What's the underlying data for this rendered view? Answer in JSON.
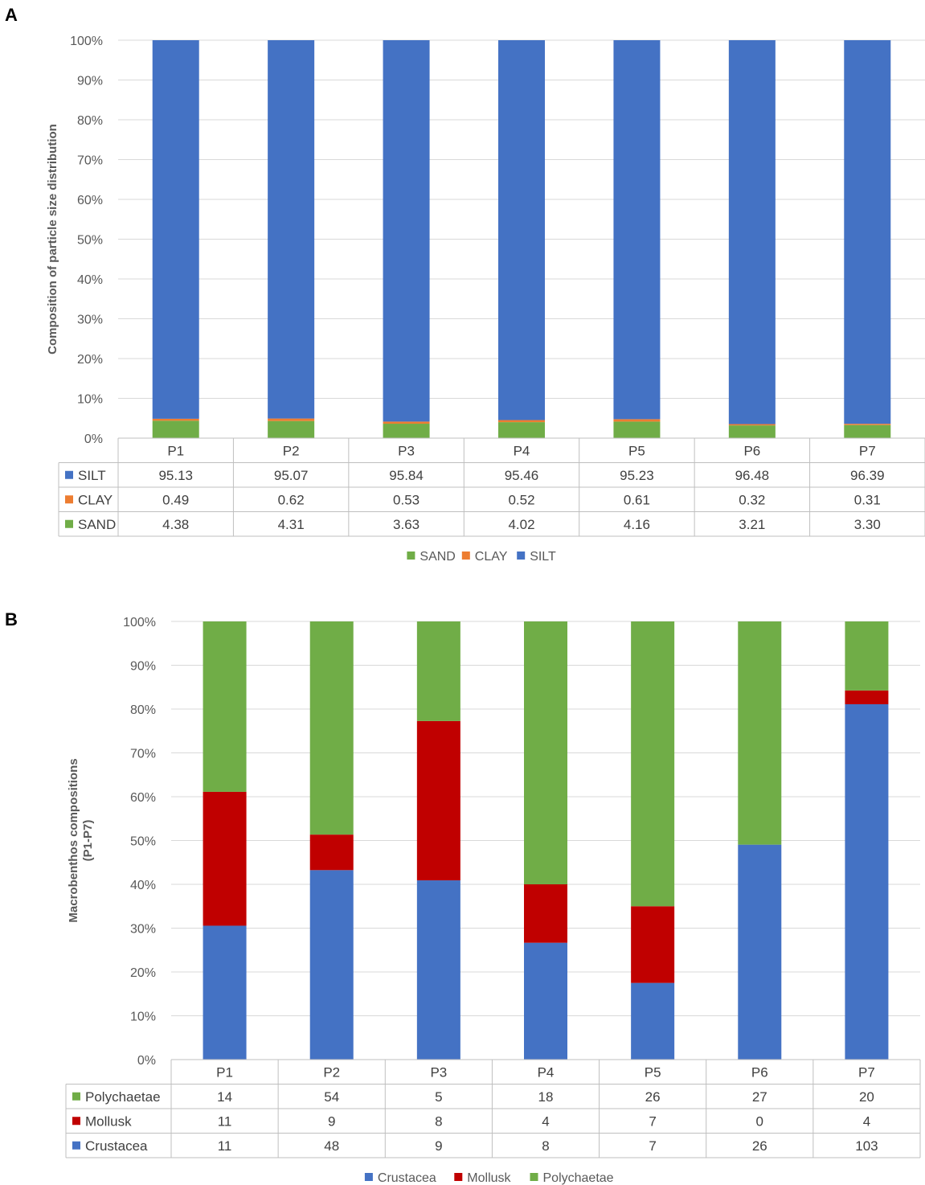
{
  "chart_data": [
    {
      "panel": "A",
      "type": "bar",
      "stacked": "percent",
      "ylabel": "Composition of particle size distribution",
      "yticks": [
        "0%",
        "10%",
        "20%",
        "30%",
        "40%",
        "50%",
        "60%",
        "70%",
        "80%",
        "90%",
        "100%"
      ],
      "ylim": [
        0,
        100
      ],
      "categories": [
        "P1",
        "P2",
        "P3",
        "P4",
        "P5",
        "P6",
        "P7"
      ],
      "series": [
        {
          "name": "SILT",
          "color": "#4472C4",
          "values": [
            95.13,
            95.07,
            95.84,
            95.46,
            95.23,
            96.48,
            96.39
          ],
          "labels": [
            "95.13",
            "95.07",
            "95.84",
            "95.46",
            "95.23",
            "96.48",
            "96.39"
          ]
        },
        {
          "name": "CLAY",
          "color": "#ED7D31",
          "values": [
            0.49,
            0.62,
            0.53,
            0.52,
            0.61,
            0.32,
            0.31
          ],
          "labels": [
            "0.49",
            "0.62",
            "0.53",
            "0.52",
            "0.61",
            "0.32",
            "0.31"
          ]
        },
        {
          "name": "SAND",
          "color": "#70AD47",
          "values": [
            4.38,
            4.31,
            3.63,
            4.02,
            4.16,
            3.21,
            3.3
          ],
          "labels": [
            "4.38",
            "4.31",
            "3.63",
            "4.02",
            "4.16",
            "3.21",
            "3.30"
          ]
        }
      ],
      "stack_order": [
        "SAND",
        "CLAY",
        "SILT"
      ],
      "legend": [
        "SAND",
        "CLAY",
        "SILT"
      ]
    },
    {
      "panel": "B",
      "type": "bar",
      "stacked": "percent",
      "ylabel": "Macrobenthos compositions (P1-P7)",
      "ylabel_lines": [
        "Macrobenthos compositions",
        "(P1-P7)"
      ],
      "yticks": [
        "0%",
        "10%",
        "20%",
        "30%",
        "40%",
        "50%",
        "60%",
        "70%",
        "80%",
        "90%",
        "100%"
      ],
      "ylim": [
        0,
        100
      ],
      "categories": [
        "P1",
        "P2",
        "P3",
        "P4",
        "P5",
        "P6",
        "P7"
      ],
      "series": [
        {
          "name": "Polychaetae",
          "color": "#70AD47",
          "values": [
            14,
            54,
            5,
            18,
            26,
            27,
            20
          ],
          "labels": [
            "14",
            "54",
            "5",
            "18",
            "26",
            "27",
            "20"
          ]
        },
        {
          "name": "Mollusk",
          "color": "#C00000",
          "values": [
            11,
            9,
            8,
            4,
            7,
            0,
            4
          ],
          "labels": [
            "11",
            "9",
            "8",
            "4",
            "7",
            "0",
            "4"
          ]
        },
        {
          "name": "Crustacea",
          "color": "#4472C4",
          "values": [
            11,
            48,
            9,
            8,
            7,
            26,
            103
          ],
          "labels": [
            "11",
            "48",
            "9",
            "8",
            "7",
            "26",
            "103"
          ]
        }
      ],
      "stack_order": [
        "Crustacea",
        "Mollusk",
        "Polychaetae"
      ],
      "legend": [
        "Crustacea",
        "Mollusk",
        "Polychaetae"
      ]
    }
  ]
}
